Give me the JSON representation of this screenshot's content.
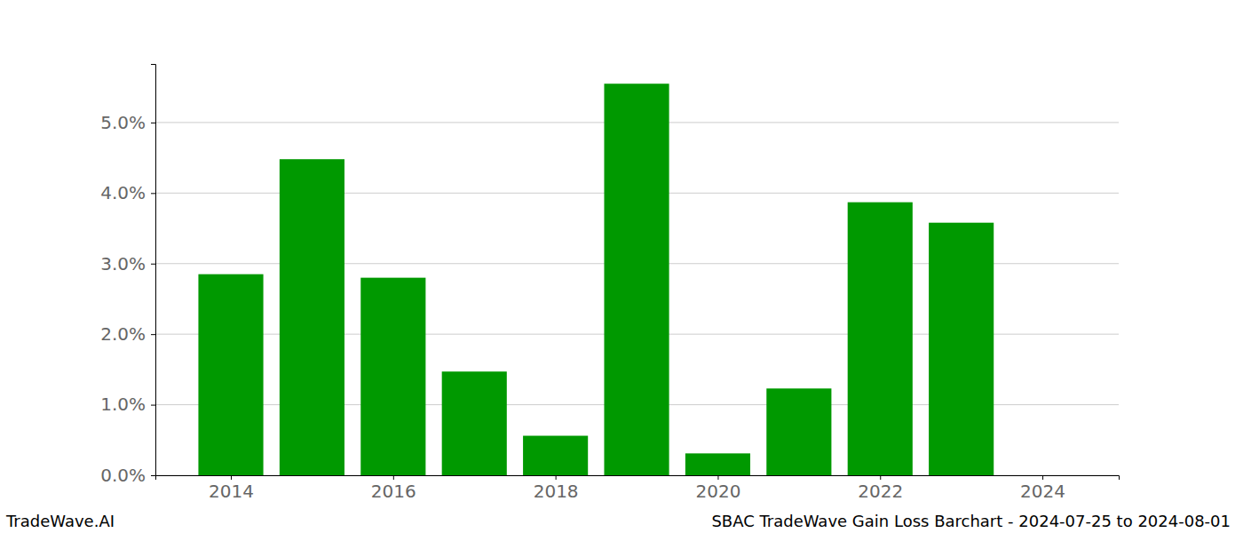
{
  "chart_data": {
    "type": "bar",
    "x": [
      2014,
      2015,
      2016,
      2017,
      2018,
      2019,
      2020,
      2021,
      2022,
      2023
    ],
    "values": [
      2.85,
      4.48,
      2.8,
      1.47,
      0.56,
      5.55,
      0.31,
      1.23,
      3.87,
      3.58
    ],
    "color": "#009900",
    "xlim": [
      2013.07,
      2024.94
    ],
    "xticks": [
      2014,
      2016,
      2018,
      2020,
      2022,
      2024
    ],
    "ylim": [
      0,
      5.83
    ],
    "yticks": [
      {
        "value": 0,
        "label": "0.0%"
      },
      {
        "value": 1,
        "label": "1.0%"
      },
      {
        "value": 2,
        "label": "2.0%"
      },
      {
        "value": 3,
        "label": "3.0%"
      },
      {
        "value": 4,
        "label": "4.0%"
      },
      {
        "value": 5,
        "label": "5.0%"
      }
    ],
    "grid": true,
    "annotations": [
      "TradeWave.AI",
      "SBAC TradeWave Gain Loss Barchart - 2024-07-25 to 2024-08-01"
    ]
  }
}
